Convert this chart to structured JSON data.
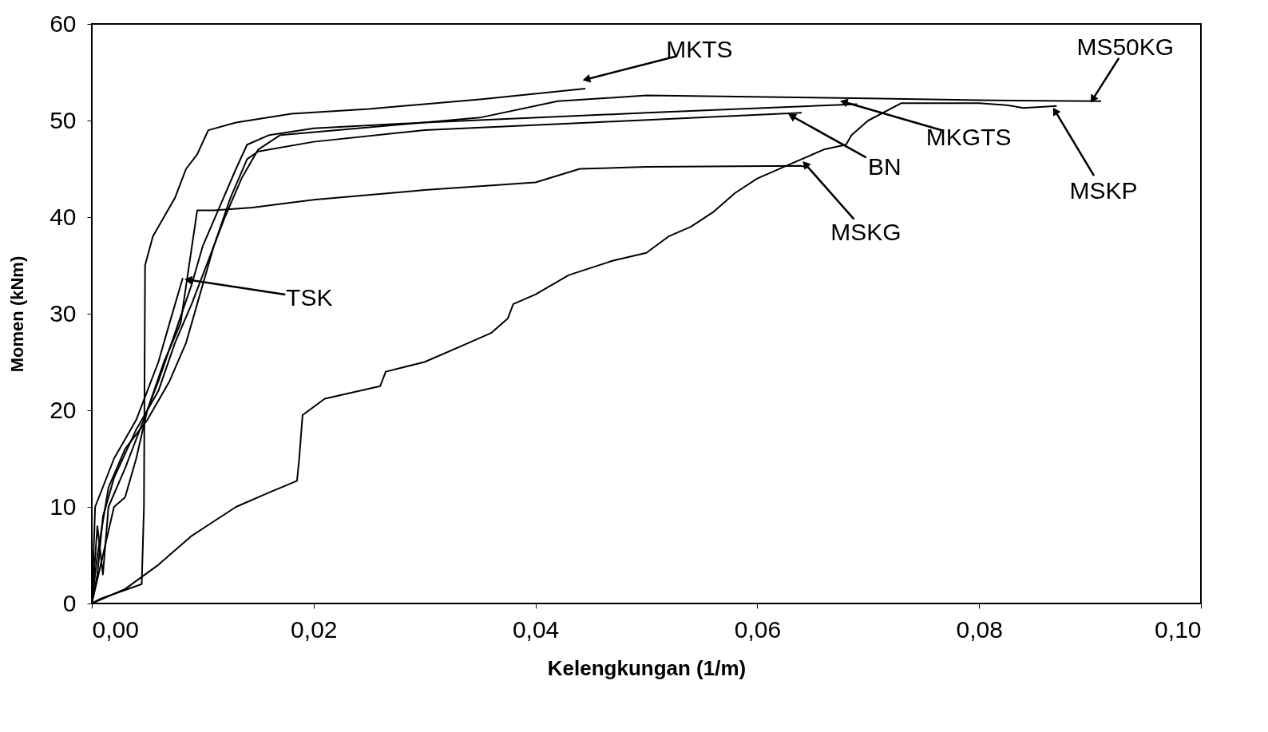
{
  "chart_data": {
    "type": "line",
    "xlabel": "Kelengkungan (1/m)",
    "ylabel": "Momen (kNm)",
    "xlim": [
      0,
      0.1
    ],
    "ylim": [
      0,
      60
    ],
    "xticks": [
      {
        "value": 0,
        "label": "0,00"
      },
      {
        "value": 0.02,
        "label": "0,02"
      },
      {
        "value": 0.04,
        "label": "0,04"
      },
      {
        "value": 0.06,
        "label": "0,06"
      },
      {
        "value": 0.08,
        "label": "0,08"
      },
      {
        "value": 0.1,
        "label": "0,10"
      }
    ],
    "yticks": [
      0,
      10,
      20,
      30,
      40,
      50,
      60
    ],
    "grid": false,
    "legend": false,
    "marker": "none",
    "line_style": "solid",
    "series": [
      {
        "color": "#000000",
        "x": [
          0,
          0.0008,
          0.0045,
          0.0047,
          0.0048,
          0.0055,
          0.0065,
          0.0075,
          0.008,
          0.0085,
          0.0095,
          0.0105,
          0.013,
          0.018,
          0.025,
          0.035,
          0.0445
        ],
        "values": [
          0,
          0.5,
          2,
          10,
          35,
          38,
          40,
          42,
          43.5,
          45,
          46.5,
          49,
          49.8,
          50.7,
          51.2,
          52.2,
          53.3
        ]
      },
      {
        "color": "#000000",
        "x": [
          0,
          0.0005,
          0.001,
          0.002,
          0.004,
          0.006,
          0.0075,
          0.009,
          0.01,
          0.012,
          0.0135,
          0.015,
          0.017,
          0.025,
          0.035,
          0.042,
          0.05,
          0.07,
          0.08,
          0.091
        ],
        "values": [
          0,
          3,
          9,
          13,
          18,
          22,
          27,
          31,
          34,
          40,
          44,
          47,
          48.5,
          49.3,
          50.3,
          52,
          52.6,
          52.3,
          52.1,
          52
        ]
      },
      {
        "color": "#000000",
        "x": [
          0,
          0.001,
          0.002,
          0.003,
          0.004,
          0.005,
          0.006,
          0.0075,
          0.009,
          0.01,
          0.0115,
          0.013,
          0.014,
          0.016,
          0.02,
          0.03,
          0.05,
          0.069
        ],
        "values": [
          0,
          5,
          10,
          11,
          15,
          20,
          23,
          28,
          33,
          37,
          41,
          45,
          47.5,
          48.5,
          49.2,
          49.8,
          50.8,
          51.7
        ]
      },
      {
        "color": "#000000",
        "x": [
          0,
          0.0005,
          0.0015,
          0.003,
          0.005,
          0.007,
          0.0085,
          0.0095,
          0.011,
          0.0125,
          0.014,
          0.015,
          0.02,
          0.03,
          0.045,
          0.064
        ],
        "values": [
          0,
          5,
          12,
          16,
          19,
          23,
          27,
          31,
          37,
          42,
          46,
          46.8,
          47.8,
          49,
          49.8,
          50.8
        ]
      },
      {
        "color": "#000000",
        "x": [
          0,
          0.003,
          0.006,
          0.009,
          0.013,
          0.016,
          0.0185,
          0.0187,
          0.019,
          0.021,
          0.026,
          0.0265,
          0.03,
          0.034,
          0.036,
          0.0375,
          0.038,
          0.04,
          0.043,
          0.047,
          0.05,
          0.052,
          0.054,
          0.056,
          0.058,
          0.06,
          0.063,
          0.066,
          0.068,
          0.0685,
          0.07,
          0.073,
          0.08,
          0.0825,
          0.084,
          0.087
        ],
        "values": [
          0,
          1.5,
          4,
          7,
          10,
          11.5,
          12.7,
          15,
          19.5,
          21.2,
          22.5,
          24,
          25,
          27,
          28,
          29.5,
          31,
          32,
          34,
          35.5,
          36.3,
          38,
          39,
          40.5,
          42.5,
          44,
          45.5,
          47,
          47.5,
          48.5,
          50,
          51.8,
          51.8,
          51.6,
          51.3,
          51.5
        ]
      },
      {
        "color": "#000000",
        "x": [
          0,
          0.0005,
          0.001,
          0.0015,
          0.003,
          0.005,
          0.0065,
          0.008,
          0.0095,
          0.011,
          0.0145,
          0.02,
          0.03,
          0.04,
          0.044,
          0.05,
          0.064,
          0.0645
        ],
        "values": [
          0,
          8,
          3,
          10,
          14,
          20,
          25,
          29,
          40.7,
          40.7,
          41,
          41.8,
          42.8,
          43.6,
          45,
          45.2,
          45.3,
          45.1
        ]
      },
      {
        "color": "#000000",
        "x": [
          0,
          0.0003,
          0.002,
          0.004,
          0.005,
          0.006,
          0.007,
          0.0082
        ],
        "values": [
          0,
          10,
          15,
          19,
          22,
          25,
          29,
          33.7
        ]
      }
    ],
    "annotations": [
      {
        "text": "MKTS",
        "x": 0.0447,
        "y": 54.3
      },
      {
        "text": "MS50KG",
        "x": 0.0903,
        "y": 52.3
      },
      {
        "text": "MKGTS",
        "x": 0.0679,
        "y": 51.9
      },
      {
        "text": "BN",
        "x": 0.0632,
        "y": 50.4
      },
      {
        "text": "MSKP",
        "x": 0.0869,
        "y": 50.9
      },
      {
        "text": "MSKG",
        "x": 0.0644,
        "y": 45.4
      },
      {
        "text": "TSK",
        "x": 0.0088,
        "y": 33.5
      }
    ]
  }
}
